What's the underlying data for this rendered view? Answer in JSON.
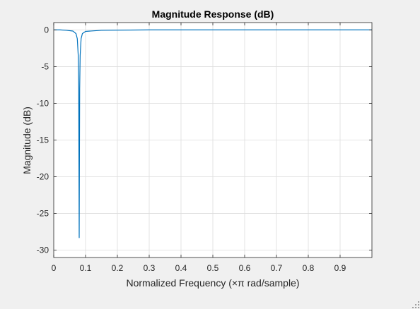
{
  "chart_data": {
    "type": "line",
    "title": "Magnitude Response (dB)",
    "xlabel": "Normalized Frequency (×π rad/sample)",
    "ylabel": "Magnitude (dB)",
    "xlim": [
      0,
      1
    ],
    "ylim": [
      -31,
      1
    ],
    "xticks": [
      "0",
      "0.1",
      "0.2",
      "0.3",
      "0.4",
      "0.5",
      "0.6",
      "0.7",
      "0.8",
      "0.9"
    ],
    "yticks": [
      "0",
      "-5",
      "-10",
      "-15",
      "-20",
      "-25",
      "-30"
    ],
    "grid": true,
    "series": [
      {
        "color": "#0072bd",
        "x": [
          0,
          0.02,
          0.04,
          0.06,
          0.07,
          0.074,
          0.077,
          0.0785,
          0.08,
          0.0815,
          0.083,
          0.086,
          0.09,
          0.1,
          0.15,
          0.3,
          0.5,
          0.7,
          0.9,
          1.0
        ],
        "y": [
          0,
          0,
          -0.05,
          -0.15,
          -0.5,
          -1.2,
          -3.5,
          -8,
          -28.3,
          -8,
          -3.5,
          -1.2,
          -0.5,
          -0.2,
          -0.05,
          0,
          0,
          0,
          0,
          0
        ]
      }
    ]
  },
  "window": {
    "grip_color": "#a0a0a0"
  }
}
